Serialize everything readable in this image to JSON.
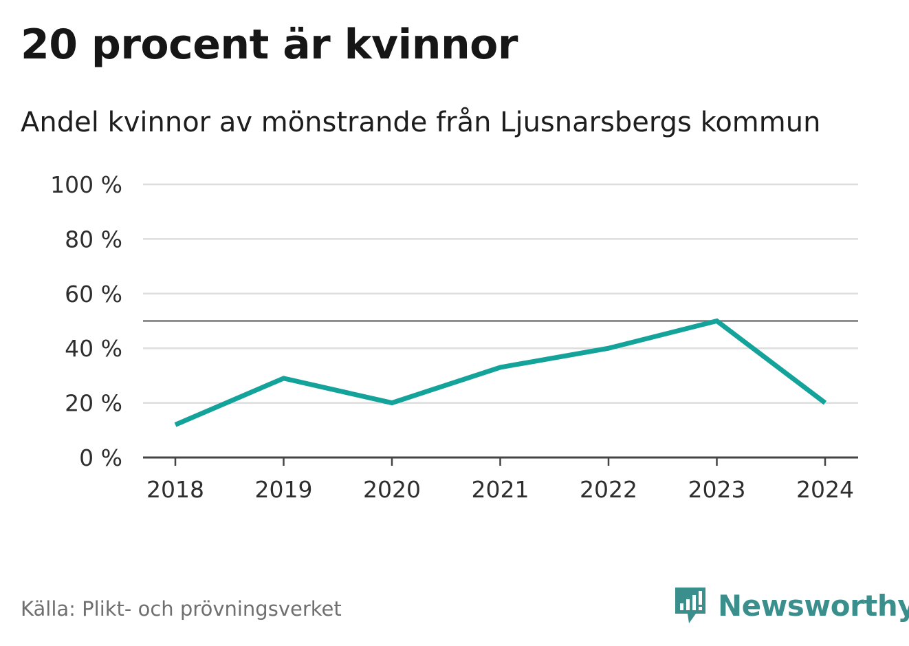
{
  "title": "20 procent är kvinnor",
  "subtitle": "Andel kvinnor av mönstrande från Ljusnarsbergs kommun",
  "source": "Källa: Plikt- och prövningsverket",
  "brand": {
    "name": "Newsworthy",
    "icon": "newsworthy-logo-icon"
  },
  "colors": {
    "line": "#14a39a",
    "grid": "#dddddd",
    "reference": "#777777",
    "axis": "#444444",
    "brand": "#3a8f8d"
  },
  "chart_data": {
    "type": "line",
    "title": "20 procent är kvinnor",
    "subtitle": "Andel kvinnor av mönstrande från Ljusnarsbergs kommun",
    "xlabel": "",
    "ylabel": "",
    "x": [
      "2018",
      "2019",
      "2020",
      "2021",
      "2022",
      "2023",
      "2024"
    ],
    "series": [
      {
        "name": "Andel kvinnor",
        "values": [
          12,
          29,
          20,
          33,
          40,
          50,
          20
        ]
      }
    ],
    "ylim": [
      0,
      100
    ],
    "yticks": [
      0,
      20,
      40,
      60,
      80,
      100
    ],
    "ytick_labels": [
      "0 %",
      "20 %",
      "40 %",
      "60 %",
      "80 %",
      "100 %"
    ],
    "reference_line": 50,
    "grid": true
  }
}
